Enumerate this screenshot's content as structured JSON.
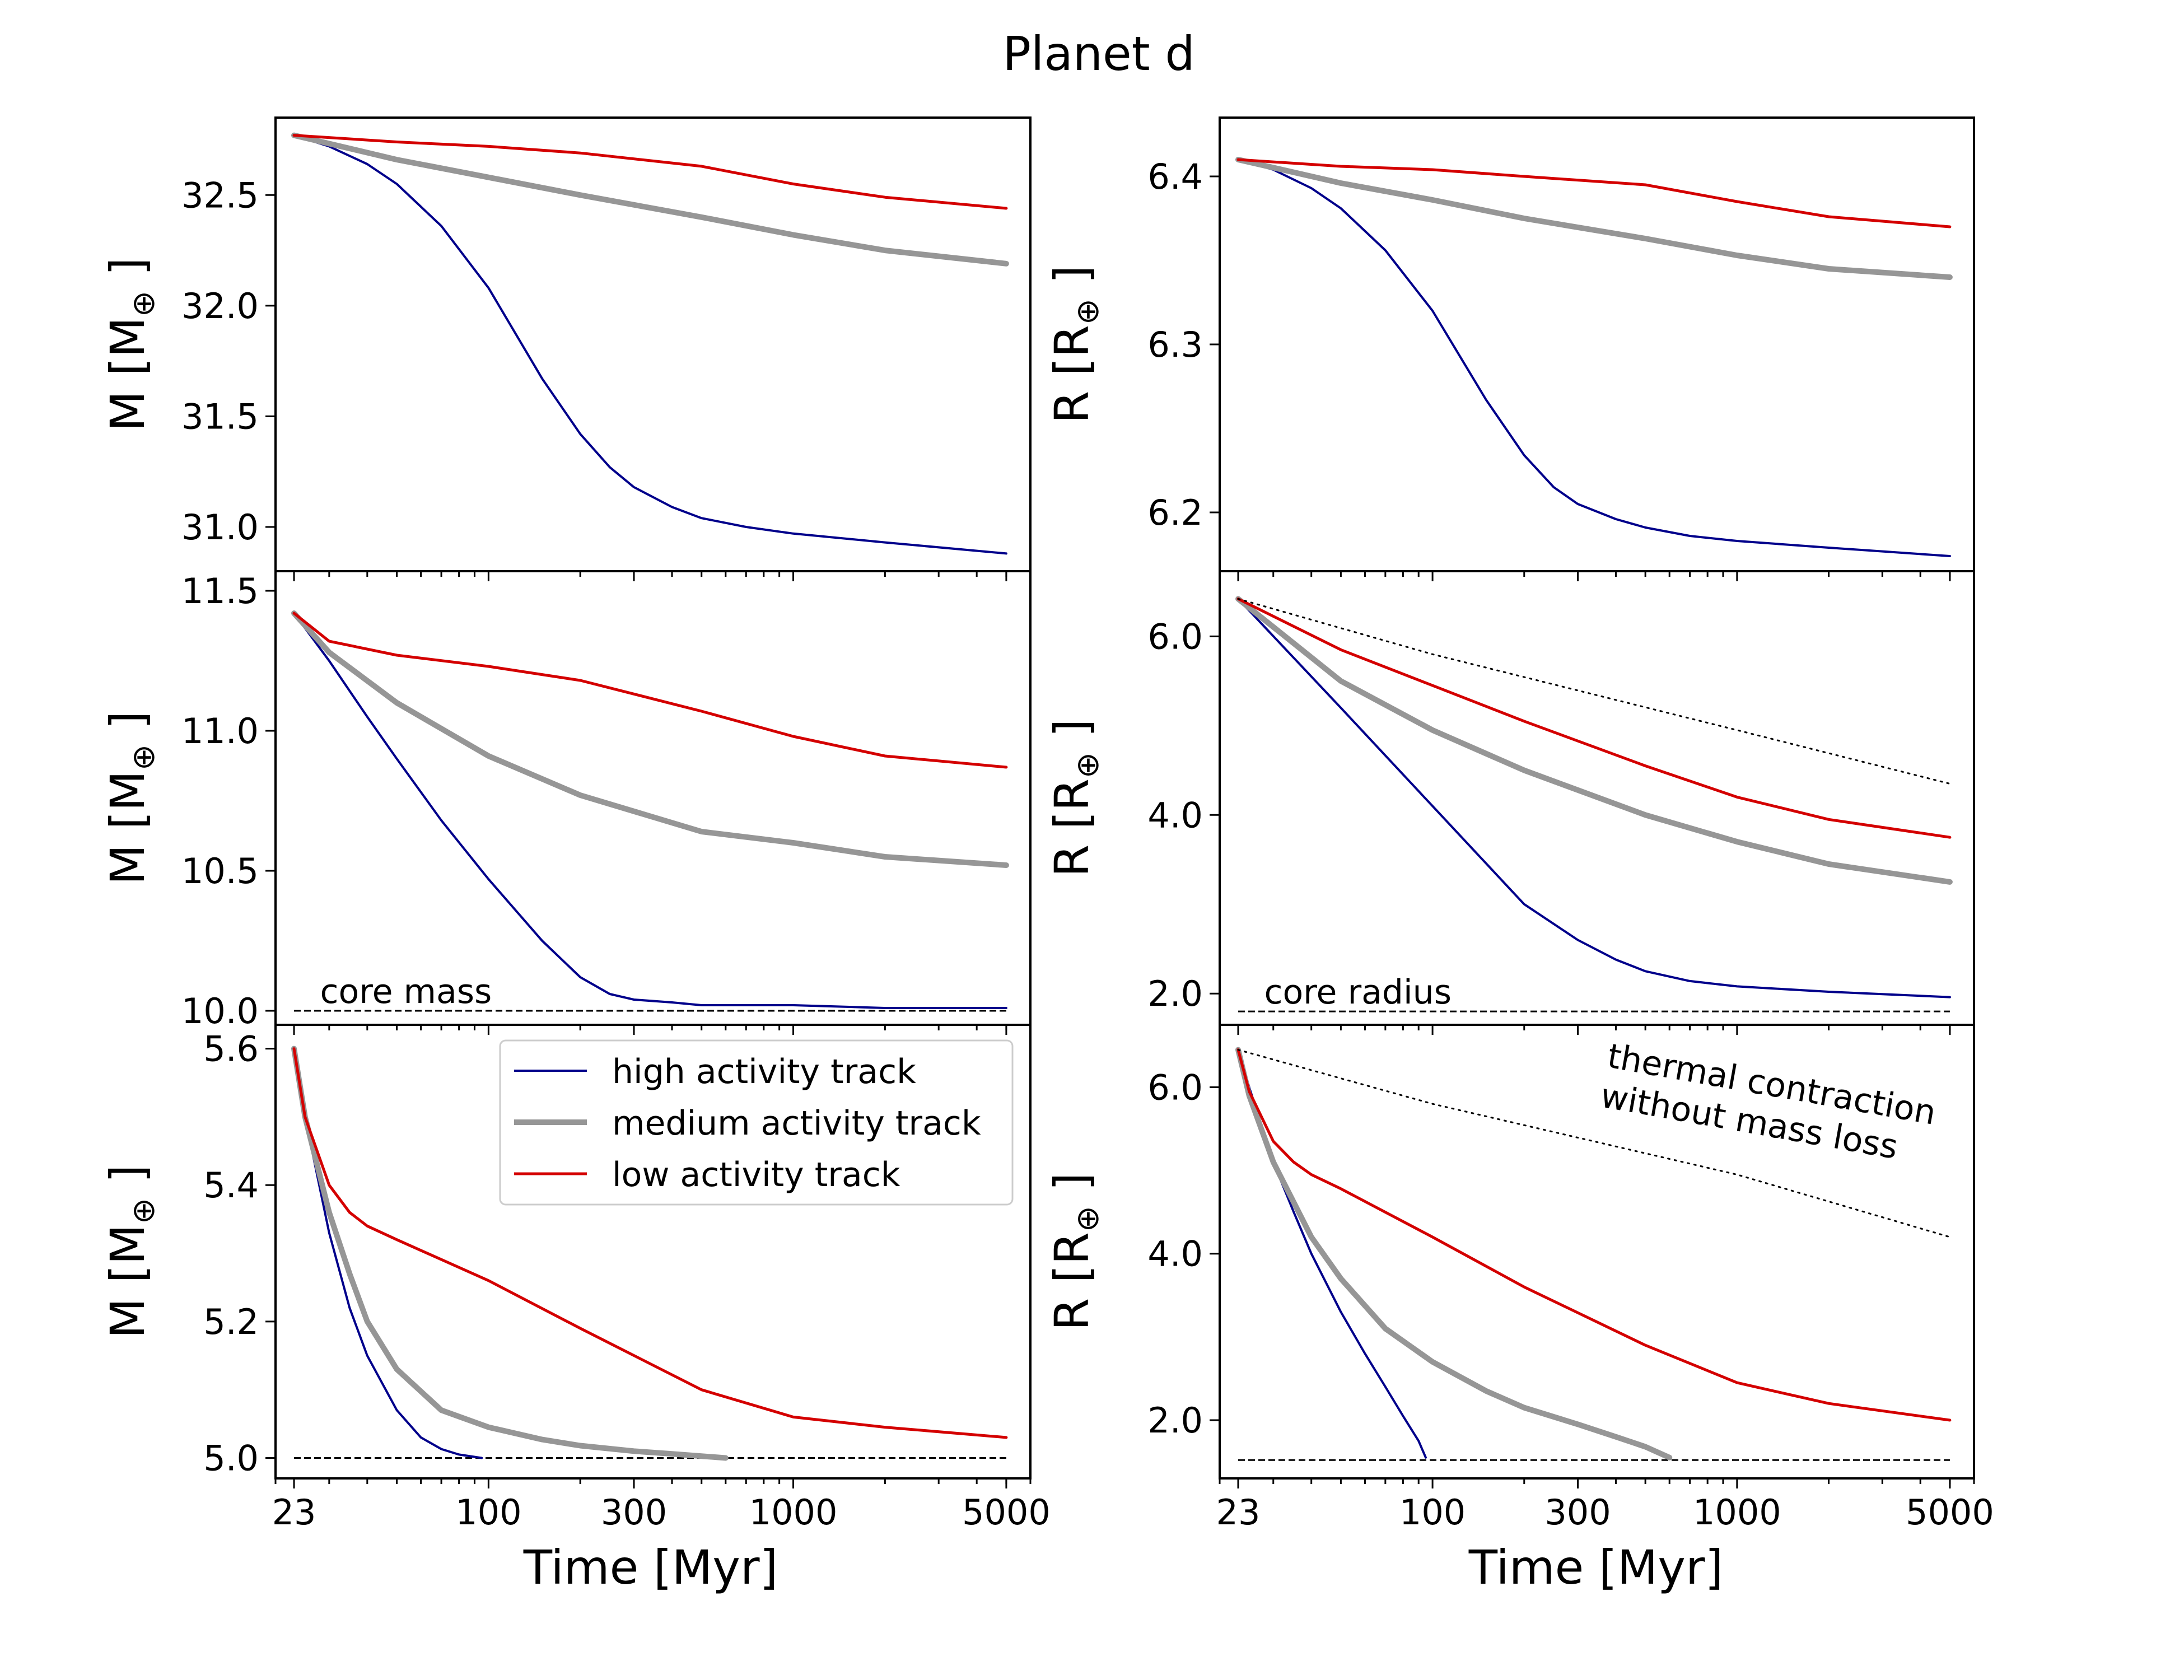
{
  "figure": {
    "title": "Planet d",
    "xlabel": "Time [Myr]",
    "xticks": [
      23,
      100,
      300,
      1000,
      5000
    ],
    "xtick_labels": [
      "23",
      "100",
      "300",
      "1000",
      "5000"
    ],
    "xscale": "log",
    "xlim": [
      20,
      6000
    ]
  },
  "legend": {
    "placement": "upper right of bottom-left panel",
    "entries": [
      {
        "label": "high activity track",
        "color": "#00008b"
      },
      {
        "label": "medium activity track",
        "color": "#969696"
      },
      {
        "label": "low activity track",
        "color": "#d40000"
      }
    ]
  },
  "chart_data": [
    {
      "type": "line",
      "panel": "top-left",
      "ylabel_main": "M [M",
      "ylabel_sub": "⊕",
      "ylabel_end": " ]",
      "xscale": "log",
      "ylim": [
        30.8,
        32.85
      ],
      "yticks": [
        31.0,
        31.5,
        32.0,
        32.5
      ],
      "ytick_labels": [
        "31.0",
        "31.5",
        "32.0",
        "32.5"
      ],
      "series": [
        {
          "name": "high activity track",
          "color": "#00008b",
          "x": [
            23,
            30,
            40,
            50,
            70,
            100,
            150,
            200,
            250,
            300,
            400,
            500,
            700,
            1000,
            2000,
            5000
          ],
          "y": [
            32.77,
            32.72,
            32.64,
            32.55,
            32.36,
            32.08,
            31.67,
            31.42,
            31.27,
            31.18,
            31.09,
            31.04,
            31.0,
            30.97,
            30.93,
            30.88
          ]
        },
        {
          "name": "medium activity track",
          "color": "#969696",
          "x": [
            23,
            50,
            100,
            200,
            500,
            1000,
            2000,
            5000
          ],
          "y": [
            32.77,
            32.66,
            32.58,
            32.5,
            32.4,
            32.32,
            32.25,
            32.19
          ]
        },
        {
          "name": "low activity track",
          "color": "#d40000",
          "x": [
            23,
            50,
            100,
            200,
            500,
            1000,
            2000,
            5000
          ],
          "y": [
            32.77,
            32.74,
            32.72,
            32.69,
            32.63,
            32.55,
            32.49,
            32.44
          ]
        }
      ]
    },
    {
      "type": "line",
      "panel": "top-right",
      "ylabel_main": "R [R",
      "ylabel_sub": "⊕",
      "ylabel_end": " ]",
      "xscale": "log",
      "ylim": [
        6.165,
        6.435
      ],
      "yticks": [
        6.2,
        6.3,
        6.4
      ],
      "ytick_labels": [
        "6.2",
        "6.3",
        "6.4"
      ],
      "series": [
        {
          "name": "high activity track",
          "color": "#00008b",
          "x": [
            23,
            30,
            40,
            50,
            70,
            100,
            150,
            200,
            250,
            300,
            400,
            500,
            700,
            1000,
            2000,
            5000
          ],
          "y": [
            6.41,
            6.404,
            6.393,
            6.381,
            6.356,
            6.32,
            6.267,
            6.234,
            6.215,
            6.205,
            6.196,
            6.191,
            6.186,
            6.183,
            6.179,
            6.174
          ]
        },
        {
          "name": "medium activity track",
          "color": "#969696",
          "x": [
            23,
            50,
            100,
            200,
            500,
            1000,
            2000,
            5000
          ],
          "y": [
            6.41,
            6.396,
            6.386,
            6.375,
            6.363,
            6.353,
            6.345,
            6.34
          ]
        },
        {
          "name": "low activity track",
          "color": "#d40000",
          "x": [
            23,
            50,
            100,
            200,
            500,
            1000,
            2000,
            5000
          ],
          "y": [
            6.41,
            6.406,
            6.404,
            6.4,
            6.395,
            6.385,
            6.376,
            6.37
          ]
        }
      ]
    },
    {
      "type": "line",
      "panel": "middle-left",
      "ylabel_main": "M [M",
      "ylabel_sub": "⊕",
      "ylabel_end": " ]",
      "xscale": "log",
      "ylim": [
        9.95,
        11.57
      ],
      "yticks": [
        10.0,
        10.5,
        11.0,
        11.5
      ],
      "ytick_labels": [
        "10.0",
        "10.5",
        "11.0",
        "11.5"
      ],
      "annotation": "core mass",
      "reference_line": {
        "style": "dashed",
        "y": 10.0
      },
      "series": [
        {
          "name": "high activity track",
          "color": "#00008b",
          "x": [
            23,
            30,
            40,
            50,
            70,
            100,
            150,
            200,
            250,
            300,
            400,
            500,
            700,
            1000,
            2000,
            5000
          ],
          "y": [
            11.42,
            11.25,
            11.05,
            10.9,
            10.68,
            10.47,
            10.25,
            10.12,
            10.06,
            10.04,
            10.03,
            10.02,
            10.02,
            10.02,
            10.01,
            10.01
          ]
        },
        {
          "name": "medium activity track",
          "color": "#969696",
          "x": [
            23,
            30,
            50,
            100,
            200,
            500,
            1000,
            2000,
            5000
          ],
          "y": [
            11.42,
            11.28,
            11.1,
            10.91,
            10.77,
            10.64,
            10.6,
            10.55,
            10.52
          ]
        },
        {
          "name": "low activity track",
          "color": "#d40000",
          "x": [
            23,
            30,
            50,
            100,
            200,
            500,
            1000,
            2000,
            5000
          ],
          "y": [
            11.42,
            11.32,
            11.27,
            11.23,
            11.18,
            11.07,
            10.98,
            10.91,
            10.87
          ]
        }
      ]
    },
    {
      "type": "line",
      "panel": "middle-right",
      "ylabel_main": "R [R",
      "ylabel_sub": "⊕",
      "ylabel_end": " ]",
      "xscale": "log",
      "ylim": [
        1.65,
        6.73
      ],
      "yticks": [
        2.0,
        4.0,
        6.0
      ],
      "ytick_labels": [
        "2.0",
        "4.0",
        "6.0"
      ],
      "annotation": "core radius",
      "reference_line": {
        "style": "dashed",
        "y": 1.8
      },
      "series": [
        {
          "name": "high activity track",
          "color": "#00008b",
          "x": [
            23,
            50,
            100,
            200,
            300,
            400,
            500,
            700,
            1000,
            2000,
            5000
          ],
          "y": [
            6.42,
            5.2,
            4.1,
            3.0,
            2.6,
            2.38,
            2.25,
            2.14,
            2.08,
            2.02,
            1.96
          ]
        },
        {
          "name": "medium activity track",
          "color": "#969696",
          "x": [
            23,
            50,
            100,
            200,
            500,
            1000,
            2000,
            5000
          ],
          "y": [
            6.42,
            5.5,
            4.95,
            4.5,
            4.0,
            3.7,
            3.45,
            3.25
          ]
        },
        {
          "name": "low activity track",
          "color": "#d40000",
          "x": [
            23,
            50,
            100,
            200,
            500,
            1000,
            2000,
            5000
          ],
          "y": [
            6.42,
            5.85,
            5.45,
            5.05,
            4.55,
            4.2,
            3.95,
            3.75
          ]
        },
        {
          "name": "",
          "style": "dotted",
          "color": "#000000",
          "x": [
            23,
            100,
            1000,
            5000
          ],
          "y": [
            6.42,
            5.8,
            4.95,
            4.35
          ]
        }
      ]
    },
    {
      "type": "line",
      "panel": "bottom-left",
      "ylabel_main": "M [M",
      "ylabel_sub": "⊕",
      "ylabel_end": " ]",
      "xscale": "log",
      "ylim": [
        4.97,
        5.635
      ],
      "yticks": [
        5.0,
        5.2,
        5.4,
        5.6
      ],
      "ytick_labels": [
        "5.0",
        "5.2",
        "5.4",
        "5.6"
      ],
      "reference_line": {
        "style": "dashed",
        "y": 5.0
      },
      "series": [
        {
          "name": "high activity track",
          "color": "#00008b",
          "x": [
            23,
            25,
            30,
            35,
            40,
            50,
            60,
            70,
            80,
            95
          ],
          "y": [
            5.6,
            5.5,
            5.33,
            5.22,
            5.15,
            5.07,
            5.03,
            5.013,
            5.005,
            5.0
          ]
        },
        {
          "name": "medium activity track",
          "color": "#969696",
          "x": [
            23,
            25,
            30,
            35,
            40,
            50,
            70,
            100,
            150,
            200,
            300,
            400,
            600
          ],
          "y": [
            5.6,
            5.5,
            5.36,
            5.27,
            5.2,
            5.13,
            5.07,
            5.045,
            5.027,
            5.018,
            5.01,
            5.006,
            5.0
          ]
        },
        {
          "name": "low activity track",
          "color": "#d40000",
          "x": [
            23,
            25,
            30,
            35,
            40,
            50,
            100,
            200,
            500,
            1000,
            2000,
            5000
          ],
          "y": [
            5.6,
            5.5,
            5.4,
            5.36,
            5.34,
            5.32,
            5.26,
            5.19,
            5.1,
            5.06,
            5.045,
            5.03
          ]
        }
      ]
    },
    {
      "type": "line",
      "panel": "bottom-right",
      "ylabel_main": "R [R",
      "ylabel_sub": "⊕",
      "ylabel_end": " ]",
      "xscale": "log",
      "ylim": [
        1.3,
        6.75
      ],
      "yticks": [
        2.0,
        4.0,
        6.0
      ],
      "ytick_labels": [
        "2.0",
        "4.0",
        "6.0"
      ],
      "annotation_lines": [
        "thermal contraction",
        "without mass loss"
      ],
      "reference_line": {
        "style": "dashed",
        "y": 1.52
      },
      "series": [
        {
          "name": "high activity track",
          "color": "#00008b",
          "x": [
            23,
            25,
            30,
            35,
            40,
            50,
            60,
            70,
            80,
            90,
            95
          ],
          "y": [
            6.45,
            6.0,
            5.1,
            4.5,
            4.0,
            3.3,
            2.8,
            2.4,
            2.05,
            1.75,
            1.55
          ]
        },
        {
          "name": "medium activity track",
          "color": "#969696",
          "x": [
            23,
            25,
            30,
            40,
            50,
            70,
            100,
            150,
            200,
            300,
            400,
            500,
            600
          ],
          "y": [
            6.45,
            5.9,
            5.1,
            4.2,
            3.7,
            3.1,
            2.7,
            2.35,
            2.15,
            1.95,
            1.8,
            1.68,
            1.55
          ]
        },
        {
          "name": "low activity track",
          "color": "#d40000",
          "x": [
            23,
            25,
            30,
            35,
            40,
            50,
            100,
            200,
            500,
            1000,
            2000,
            5000
          ],
          "y": [
            6.45,
            5.95,
            5.35,
            5.1,
            4.95,
            4.78,
            4.2,
            3.6,
            2.9,
            2.45,
            2.2,
            2.0
          ]
        },
        {
          "name": "",
          "style": "dotted",
          "color": "#000000",
          "x": [
            23,
            100,
            1000,
            5000
          ],
          "y": [
            6.45,
            5.8,
            4.95,
            4.2
          ]
        }
      ]
    }
  ]
}
